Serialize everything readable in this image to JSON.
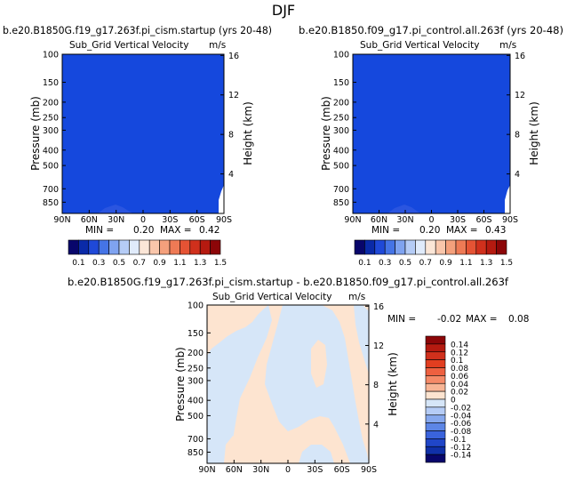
{
  "page_title": "DJF",
  "chart_data": [
    {
      "type": "heatmap",
      "title_left": "b.e20.B1850G.f19_g17.263f.pi_cism.startup (yrs 20-48)",
      "field_label": "Sub_Grid Vertical Velocity",
      "units": "m/s",
      "xlabel": "",
      "ylabel": "Pressure (mb)",
      "ylabel_right": "Height (km)",
      "x_ticks": [
        "90N",
        "60N",
        "30N",
        "0",
        "30S",
        "60S",
        "90S"
      ],
      "y_ticks": [
        100,
        150,
        200,
        250,
        300,
        400,
        500,
        700,
        850
      ],
      "height_ticks": [
        16,
        12,
        8,
        4
      ],
      "ylim": [
        100,
        1000
      ],
      "xlim": [
        90,
        -90
      ],
      "min_label": "MIN =",
      "min_value": "0.20",
      "max_label": "MAX =",
      "max_value": "0.42",
      "fill_level": "0.1"
    },
    {
      "type": "heatmap",
      "title_left": "b.e20.B1850.f09_g17.pi_control.all.263f (yrs 20-48)",
      "field_label": "Sub_Grid Vertical Velocity",
      "units": "m/s",
      "xlabel": "",
      "ylabel": "Pressure (mb)",
      "ylabel_right": "Height (km)",
      "x_ticks": [
        "90N",
        "60N",
        "30N",
        "0",
        "30S",
        "60S",
        "90S"
      ],
      "y_ticks": [
        100,
        150,
        200,
        250,
        300,
        400,
        500,
        700,
        850
      ],
      "height_ticks": [
        16,
        12,
        8,
        4
      ],
      "ylim": [
        100,
        1000
      ],
      "xlim": [
        90,
        -90
      ],
      "min_label": "MIN =",
      "min_value": "0.20",
      "max_label": "MAX =",
      "max_value": "0.43",
      "fill_level": "0.1"
    },
    {
      "type": "heatmap",
      "title": "b.e20.B1850G.f19_g17.263f.pi_cism.startup - b.e20.B1850.f09_g17.pi_control.all.263f",
      "field_label": "Sub_Grid Vertical Velocity",
      "units": "m/s",
      "xlabel": "",
      "ylabel": "Pressure (mb)",
      "ylabel_right": "Height (km)",
      "x_ticks": [
        "90N",
        "60N",
        "30N",
        "0",
        "30S",
        "60S",
        "90S"
      ],
      "y_ticks": [
        100,
        150,
        200,
        250,
        300,
        400,
        500,
        700,
        850
      ],
      "height_ticks": [
        16,
        12,
        8,
        4
      ],
      "ylim": [
        100,
        1000
      ],
      "xlim": [
        90,
        -90
      ],
      "min_label": "MIN =",
      "min_value": "-0.02",
      "max_label": "MAX =",
      "max_value": "0.08",
      "fill_levels": [
        "0",
        "-0.02"
      ]
    }
  ],
  "colorbar_abs": {
    "labels": [
      "0.1",
      "0.3",
      "0.5",
      "0.7",
      "0.9",
      "1.1",
      "1.3",
      "1.5"
    ],
    "colors": [
      "#08066b",
      "#0a2aa8",
      "#1f49d8",
      "#4574e6",
      "#7fa3f0",
      "#b5ccf6",
      "#e0ebfb",
      "#fbe6d7",
      "#f9c6ab",
      "#f4a07c",
      "#ee7a55",
      "#e55334",
      "#d0301c",
      "#b51a10",
      "#8c0608"
    ]
  },
  "colorbar_diff": {
    "labels": [
      "0.14",
      "0.12",
      "0.1",
      "0.08",
      "0.06",
      "0.04",
      "0.02",
      "0",
      "-0.02",
      "-0.04",
      "-0.06",
      "-0.08",
      "-0.1",
      "-0.12",
      "-0.14"
    ],
    "colors": [
      "#8c0608",
      "#b51a10",
      "#d0301c",
      "#e23e20",
      "#ee6040",
      "#f58a68",
      "#f8b595",
      "#fde4d0",
      "#d6e6f8",
      "#b5ccf6",
      "#86a8ee",
      "#5d86e6",
      "#3a63dc",
      "#2046c8",
      "#1030a8",
      "#08066b"
    ]
  }
}
